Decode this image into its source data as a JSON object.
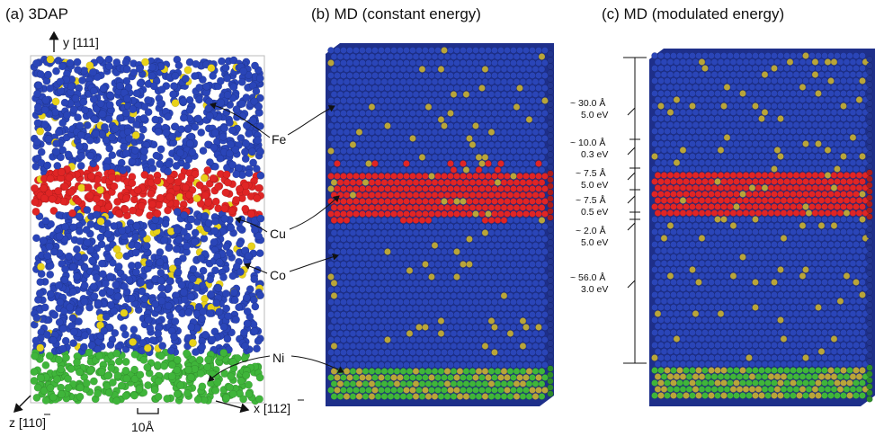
{
  "panels": [
    {
      "title": "(a) 3DAP"
    },
    {
      "title": "(b) MD (constant energy)"
    },
    {
      "title": "(c) MD (modulated energy)"
    }
  ],
  "atom_labels": [
    "Fe",
    "Cu",
    "Co",
    "Ni"
  ],
  "axes": {
    "y": "y [111]",
    "x": "x [112]",
    "z": "z [110]"
  },
  "scale_bar": "10Å",
  "layers": [
    {
      "thickness": "~ 30.0 Å",
      "energy": "5.0 eV"
    },
    {
      "thickness": "~ 10.0 Å",
      "energy": "0.3 eV"
    },
    {
      "thickness": "~ 7.5 Å",
      "energy": "5.0 eV"
    },
    {
      "thickness": "~ 7.5 Å",
      "energy": "0.5 eV"
    },
    {
      "thickness": "~ 2.0 Å",
      "energy": "5.0 eV"
    },
    {
      "thickness": "~ 56.0 Å",
      "energy": "3.0 eV"
    }
  ],
  "colors": {
    "co": "#2a45b8",
    "cu": "#e02525",
    "ni": "#3fb53a",
    "fe": "#e8d21a",
    "fe_md": "#b9a53a"
  }
}
